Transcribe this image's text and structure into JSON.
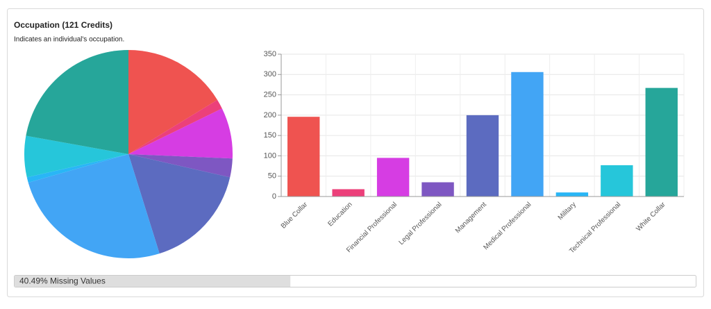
{
  "header": {
    "title": "Occupation (121 Credits)",
    "subtitle": "Indicates an individual's occupation."
  },
  "chart_data": [
    {
      "type": "pie",
      "values": [
        196,
        18,
        95,
        35,
        200,
        306,
        10,
        77,
        267
      ],
      "colors": [
        "#ef5350",
        "#ec407a",
        "#d63de3",
        "#7e57c2",
        "#5c6bc0",
        "#42a5f5",
        "#29b6f6",
        "#26c6da",
        "#26a69a"
      ]
    },
    {
      "type": "bar",
      "categories": [
        "Blue Collar",
        "Education",
        "Financial Professional",
        "Legal Professional",
        "Management",
        "Medical Professional",
        "Military",
        "Technical Professional",
        "White Collar"
      ],
      "values": [
        196,
        18,
        95,
        35,
        200,
        306,
        10,
        77,
        267
      ],
      "colors": [
        "#ef5350",
        "#ec407a",
        "#d63de3",
        "#7e57c2",
        "#5c6bc0",
        "#42a5f5",
        "#29b6f6",
        "#26c6da",
        "#26a69a"
      ],
      "ylim": [
        0,
        350
      ],
      "yticks": [
        0,
        50,
        100,
        150,
        200,
        250,
        300,
        350
      ],
      "grid": true
    }
  ],
  "missing": {
    "label": "40.49% Missing Values",
    "value": 40.49
  }
}
